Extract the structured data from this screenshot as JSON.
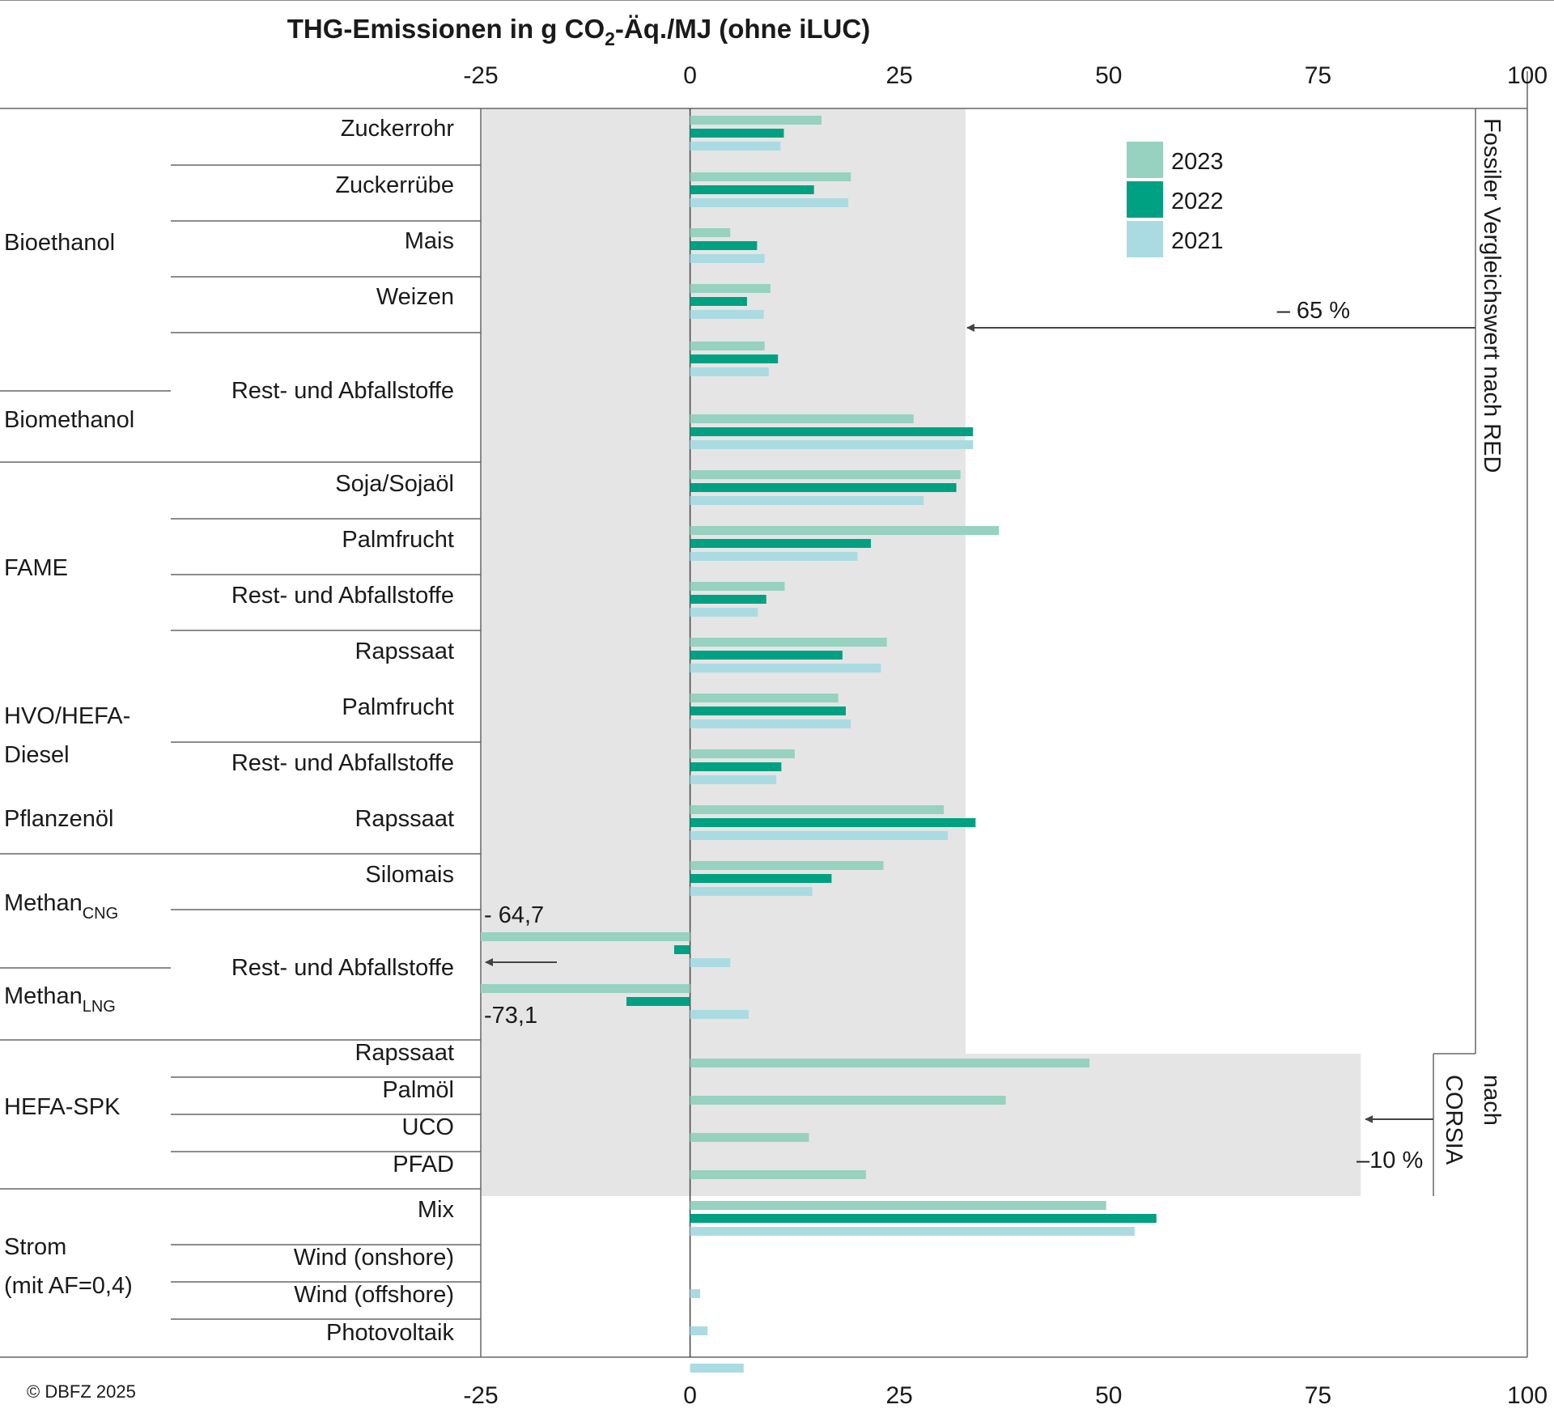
{
  "chart_data": {
    "type": "bar",
    "orientation": "horizontal",
    "title_main": "THG-Emissionen in g CO",
    "title_sub": "2",
    "title_tail": "-Äq./MJ (ohne iLUC)",
    "xlim": [
      -25,
      100
    ],
    "xticks": [
      -25,
      0,
      25,
      50,
      75,
      100
    ],
    "legend_position": "top-right",
    "series": [
      {
        "name": "2023",
        "color": "#97d1bf"
      },
      {
        "name": "2022",
        "color": "#00a082"
      },
      {
        "name": "2021",
        "color": "#aadbe2"
      }
    ],
    "groups": [
      {
        "label": "Bioethanol"
      },
      {
        "label": "Biomethanol"
      },
      {
        "label": "FAME"
      },
      {
        "label": "HVO/HEFA-",
        "label2": "Diesel"
      },
      {
        "label": "Pflanzenöl"
      },
      {
        "label": "Methan",
        "sub": "CNG"
      },
      {
        "label": "Methan",
        "sub": "LNG"
      },
      {
        "label": "HEFA-SPK"
      },
      {
        "label": "Strom",
        "label2": "(mit AF=0,4)"
      }
    ],
    "categories": [
      {
        "label": "Zuckerrohr",
        "values": [
          15.7,
          11.2,
          10.8
        ]
      },
      {
        "label": "Zuckerrübe",
        "values": [
          19.2,
          14.8,
          18.9
        ]
      },
      {
        "label": "Mais",
        "values": [
          4.8,
          8.0,
          8.9
        ]
      },
      {
        "label": "Weizen",
        "values": [
          9.6,
          6.8,
          8.8
        ]
      },
      {
        "label": "Rest- und Abfallstoffe",
        "values": [
          8.9,
          10.5,
          9.4
        ]
      },
      {
        "label": "",
        "values": [
          26.7,
          33.8,
          33.8
        ]
      },
      {
        "label": "Soja/Sojaöl",
        "values": [
          32.3,
          31.8,
          27.9
        ]
      },
      {
        "label": "Palmfrucht",
        "values": [
          36.9,
          21.6,
          20.0
        ]
      },
      {
        "label": "Rest- und Abfallstoffe",
        "values": [
          11.3,
          9.1,
          8.1
        ]
      },
      {
        "label": "Rapssaat",
        "values": [
          23.5,
          18.2,
          22.8
        ]
      },
      {
        "label": "Palmfrucht",
        "values": [
          17.7,
          18.6,
          19.2
        ]
      },
      {
        "label": "Rest- und Abfallstoffe",
        "values": [
          12.5,
          10.9,
          10.3
        ]
      },
      {
        "label": "Rapssaat",
        "values": [
          30.3,
          34.1,
          30.8
        ]
      },
      {
        "label": "Silomais",
        "values": [
          23.1,
          16.9,
          14.6
        ]
      },
      {
        "label": "Rest- und Abfallstoffe",
        "values": [
          -64.7,
          -1.9,
          4.8
        ]
      },
      {
        "label": "",
        "values": [
          -73.1,
          -7.6,
          7.0
        ]
      },
      {
        "label": "Rapssaat",
        "values": [
          47.7
        ]
      },
      {
        "label": "Palmöl",
        "values": [
          37.7
        ]
      },
      {
        "label": "UCO",
        "values": [
          14.2
        ]
      },
      {
        "label": "PFAD",
        "values": [
          21.0
        ]
      },
      {
        "label": "Mix",
        "values": [
          49.7,
          55.7,
          53.1
        ]
      },
      {
        "label": "Wind (onshore)",
        "values": [
          null,
          null,
          1.2
        ]
      },
      {
        "label": "Wind (offshore)",
        "values": [
          null,
          null,
          2.1
        ]
      },
      {
        "label": "Photovoltaik",
        "values": [
          null,
          null,
          6.4
        ]
      }
    ],
    "thresholds": [
      {
        "label": "Fossiler Vergleichswert nach RED",
        "reduction": "– 65 %",
        "value": 32.9
      },
      {
        "label1": "nach",
        "label2": "CORSIA",
        "reduction": "–10 %",
        "value": 80.1
      }
    ],
    "annotations": [
      "- 64,7",
      "-73,1"
    ],
    "source": "© DBFZ 2025"
  }
}
